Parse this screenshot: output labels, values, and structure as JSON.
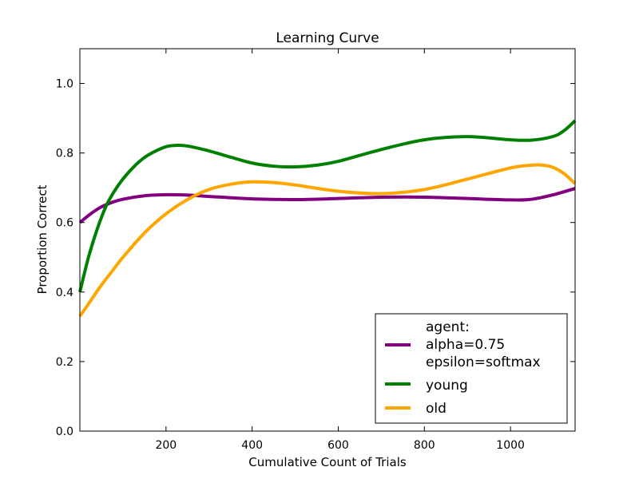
{
  "chart_data": {
    "type": "line",
    "title": "Learning Curve",
    "xlabel": "Cumulative Count of Trials",
    "ylabel": "Proportion Correct",
    "xlim": [
      0,
      1150
    ],
    "ylim": [
      0,
      1.1
    ],
    "xticks": [
      200,
      400,
      600,
      800,
      1000
    ],
    "xtick_labels": [
      "200",
      "400",
      "600",
      "800",
      "1000"
    ],
    "yticks": [
      0.0,
      0.2,
      0.4,
      0.6,
      0.8,
      1.0
    ],
    "ytick_labels": [
      "0.0",
      "0.2",
      "0.4",
      "0.6",
      "0.8",
      "1.0"
    ],
    "grid": false,
    "legend_position": "lower-right",
    "series": [
      {
        "name": "agent:\nalpha=0.75\nepsilon=softmax",
        "color": "#800080",
        "x": [
          0,
          25,
          50,
          75,
          100,
          150,
          200,
          250,
          300,
          400,
          500,
          600,
          700,
          800,
          900,
          1000,
          1050,
          1100,
          1150
        ],
        "y": [
          0.6,
          0.625,
          0.645,
          0.658,
          0.667,
          0.677,
          0.68,
          0.679,
          0.675,
          0.668,
          0.666,
          0.669,
          0.673,
          0.673,
          0.669,
          0.665,
          0.667,
          0.68,
          0.698
        ]
      },
      {
        "name": "young",
        "color": "#008000",
        "x": [
          0,
          20,
          40,
          60,
          80,
          100,
          125,
          150,
          175,
          200,
          225,
          250,
          300,
          350,
          400,
          450,
          500,
          550,
          600,
          700,
          800,
          900,
          1000,
          1050,
          1100,
          1125,
          1150
        ],
        "y": [
          0.4,
          0.5,
          0.58,
          0.645,
          0.69,
          0.725,
          0.76,
          0.787,
          0.805,
          0.818,
          0.822,
          0.82,
          0.806,
          0.788,
          0.771,
          0.762,
          0.76,
          0.765,
          0.776,
          0.81,
          0.838,
          0.847,
          0.838,
          0.837,
          0.848,
          0.865,
          0.893
        ]
      },
      {
        "name": "old",
        "color": "#ffa500",
        "x": [
          0,
          25,
          50,
          75,
          100,
          150,
          200,
          250,
          300,
          350,
          400,
          450,
          500,
          600,
          700,
          800,
          900,
          1000,
          1050,
          1075,
          1100,
          1125,
          1150
        ],
        "y": [
          0.33,
          0.375,
          0.42,
          0.46,
          0.5,
          0.57,
          0.625,
          0.666,
          0.695,
          0.71,
          0.717,
          0.715,
          0.708,
          0.69,
          0.683,
          0.695,
          0.725,
          0.757,
          0.765,
          0.765,
          0.758,
          0.74,
          0.712
        ]
      }
    ]
  }
}
